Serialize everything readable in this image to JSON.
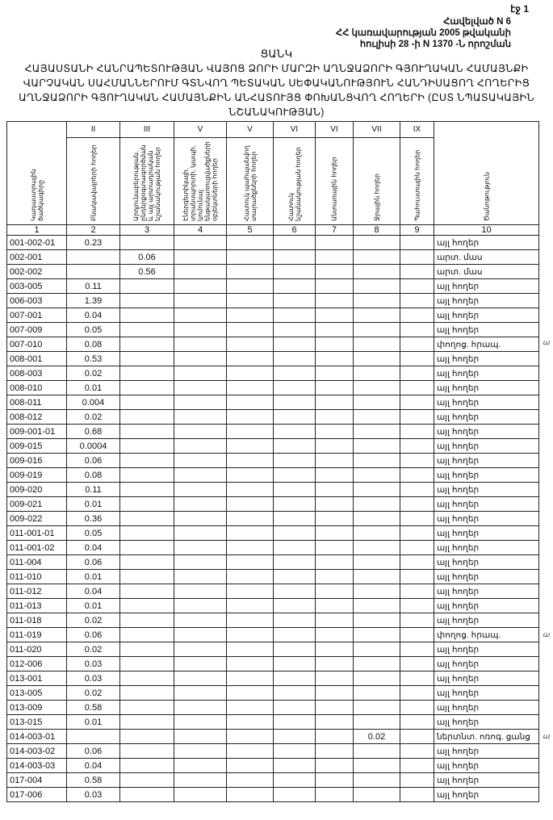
{
  "header": {
    "sheet": "էջ 1",
    "annex_lines": [
      "Հավելված N 6",
      "ՀՀ կառավարության 2005 թվականի",
      "հուլիսի 28 -ի N 1370 -Ն որոշման"
    ],
    "title_list": "ՑԱՆԿ",
    "title_lines": [
      "ՀԱՅԱՍՏԱՆԻ ՀԱՆՐԱՊԵՏՈՒԹՅԱՆ ՎԱՅՈՑ ՁՈՐԻ ՄԱՐԶԻ ԱՂՆՋԱՁՈՐԻ ԳՅՈՒՂԱԿԱՆ ՀԱՄԱՅՆՔԻ",
      "ՎԱՐՉԱԿԱՆ ՍԱՀՄԱՆՆԵՐՈՒՄ ԳՏՆՎՈՂ ՊԵՏԱԿԱՆ ՍԵՓԱԿԱՆՈՒԹՅՈՒՆ ՀԱՆԴԻՍԱՑՈՂ ՀՈՂԵՐԻՑ",
      "ԱՂՆՋԱՁՈՐԻ ԳՅՈՒՂԱԿԱՆ ՀԱՄԱՅՆՔԻՆ ԱՆՀԱՏՈՒՅՑ ՓՈԽԱՆՑՎՈՂ ՀՈՂԵՐԻ (ԸՍՏ ՆՊԱՏԱԿԱՅԻՆ",
      "ՆՇԱՆԱԿՈՒԹՅԱՆ)"
    ]
  },
  "table": {
    "roman": [
      "",
      "II",
      "III",
      "V",
      "V",
      "VI",
      "VI",
      "VII",
      "IX",
      ""
    ],
    "headers": [
      "Կադաստրային ծածկագիրը",
      "Բնակավայրերի հողեր",
      "Արդյունաբերության, ընդերքօգտագործման և այլ արտադրական նշանակության հողեր",
      "Էներգետիկայի, տրանսպորտի, կապի, կոմունալ ենթակառուցվածքների օբյեկտների հողեր",
      "Հատուկ պահպանվող տարածքների հողեր",
      "Հատուկ նշանակության հողեր",
      "Անտառային հողեր",
      "Ջրային հողեր",
      "Պահուստային հողեր",
      "Ծանոթություն"
    ],
    "numbers": [
      "1",
      "2",
      "3",
      "4",
      "5",
      "6",
      "7",
      "8",
      "9",
      "10"
    ],
    "rows": [
      [
        "001-002-01",
        "0.23",
        "",
        "",
        "",
        "",
        "",
        "",
        "",
        "այլ հողեր"
      ],
      [
        "002-001",
        "",
        "0.06",
        "",
        "",
        "",
        "",
        "",
        "",
        "արտ. մաս"
      ],
      [
        "002-002",
        "",
        "0.56",
        "",
        "",
        "",
        "",
        "",
        "",
        "արտ. մաս"
      ],
      [
        "003-005",
        "0.11",
        "",
        "",
        "",
        "",
        "",
        "",
        "",
        "այլ հողեր"
      ],
      [
        "006-003",
        "1.39",
        "",
        "",
        "",
        "",
        "",
        "",
        "",
        "այլ հողեր"
      ],
      [
        "007-001",
        "0.04",
        "",
        "",
        "",
        "",
        "",
        "",
        "",
        "այլ հողեր"
      ],
      [
        "007-009",
        "0.05",
        "",
        "",
        "",
        "",
        "",
        "",
        "",
        "այլ հողեր"
      ],
      [
        "007-010",
        "0.08",
        "",
        "",
        "",
        "",
        "",
        "",
        "",
        "փողոց. հրապ."
      ],
      [
        "008-001",
        "0.53",
        "",
        "",
        "",
        "",
        "",
        "",
        "",
        "այլ հողեր"
      ],
      [
        "008-003",
        "0.02",
        "",
        "",
        "",
        "",
        "",
        "",
        "",
        "այլ հողեր"
      ],
      [
        "008-010",
        "0.01",
        "",
        "",
        "",
        "",
        "",
        "",
        "",
        "այլ հողեր"
      ],
      [
        "008-011",
        "0.004",
        "",
        "",
        "",
        "",
        "",
        "",
        "",
        "այլ հողեր"
      ],
      [
        "008-012",
        "0.02",
        "",
        "",
        "",
        "",
        "",
        "",
        "",
        "այլ հողեր"
      ],
      [
        "009-001-01",
        "0.68",
        "",
        "",
        "",
        "",
        "",
        "",
        "",
        "այլ հողեր"
      ],
      [
        "009-015",
        "0.0004",
        "",
        "",
        "",
        "",
        "",
        "",
        "",
        "այլ հողեր"
      ],
      [
        "009-016",
        "0.06",
        "",
        "",
        "",
        "",
        "",
        "",
        "",
        "այլ հողեր"
      ],
      [
        "009-019",
        "0.08",
        "",
        "",
        "",
        "",
        "",
        "",
        "",
        "այլ հողեր"
      ],
      [
        "009-020",
        "0.11",
        "",
        "",
        "",
        "",
        "",
        "",
        "",
        "այլ հողեր"
      ],
      [
        "009-021",
        "0.01",
        "",
        "",
        "",
        "",
        "",
        "",
        "",
        "այլ հողեր"
      ],
      [
        "009-022",
        "0.36",
        "",
        "",
        "",
        "",
        "",
        "",
        "",
        "այլ հողեր"
      ],
      [
        "011-001-01",
        "0.05",
        "",
        "",
        "",
        "",
        "",
        "",
        "",
        "այլ հողեր"
      ],
      [
        "011-001-02",
        "0.04",
        "",
        "",
        "",
        "",
        "",
        "",
        "",
        "այլ հողեր"
      ],
      [
        "011-004",
        "0.06",
        "",
        "",
        "",
        "",
        "",
        "",
        "",
        "այլ հողեր"
      ],
      [
        "011-010",
        "0.01",
        "",
        "",
        "",
        "",
        "",
        "",
        "",
        "այլ հողեր"
      ],
      [
        "011-012",
        "0.04",
        "",
        "",
        "",
        "",
        "",
        "",
        "",
        "այլ հողեր"
      ],
      [
        "011-013",
        "0.01",
        "",
        "",
        "",
        "",
        "",
        "",
        "",
        "այլ հողեր"
      ],
      [
        "011-018",
        "0.02",
        "",
        "",
        "",
        "",
        "",
        "",
        "",
        "այլ հողեր"
      ],
      [
        "011-019",
        "0.06",
        "",
        "",
        "",
        "",
        "",
        "",
        "",
        "փողոց. հրապ."
      ],
      [
        "011-020",
        "0.02",
        "",
        "",
        "",
        "",
        "",
        "",
        "",
        "այլ հողեր"
      ],
      [
        "012-006",
        "0.03",
        "",
        "",
        "",
        "",
        "",
        "",
        "",
        "այլ հողեր"
      ],
      [
        "013-001",
        "0.03",
        "",
        "",
        "",
        "",
        "",
        "",
        "",
        "այլ հողեր"
      ],
      [
        "013-005",
        "0.02",
        "",
        "",
        "",
        "",
        "",
        "",
        "",
        "այլ հողեր"
      ],
      [
        "013-009",
        "0.58",
        "",
        "",
        "",
        "",
        "",
        "",
        "",
        "այլ հողեր"
      ],
      [
        "013-015",
        "0.01",
        "",
        "",
        "",
        "",
        "",
        "",
        "",
        "այլ հողեր"
      ],
      [
        "014-003-01",
        "",
        "",
        "",
        "",
        "",
        "",
        "0.02",
        "",
        "ներտնտ. ոռոգ. ցանց"
      ],
      [
        "014-003-02",
        "0.06",
        "",
        "",
        "",
        "",
        "",
        "",
        "",
        "այլ հողեր"
      ],
      [
        "014-003-03",
        "0.04",
        "",
        "",
        "",
        "",
        "",
        "",
        "",
        "այլ հողեր"
      ],
      [
        "017-004",
        "0.58",
        "",
        "",
        "",
        "",
        "",
        "",
        "",
        "այլ հողեր"
      ],
      [
        "017-006",
        "0.03",
        "",
        "",
        "",
        "",
        "",
        "",
        "",
        "այլ հողեր"
      ]
    ]
  },
  "margin_marks": [
    {
      "row": 7,
      "text": "ա"
    },
    {
      "row": 27,
      "text": "ա"
    },
    {
      "row": 34,
      "text": "ա"
    }
  ]
}
